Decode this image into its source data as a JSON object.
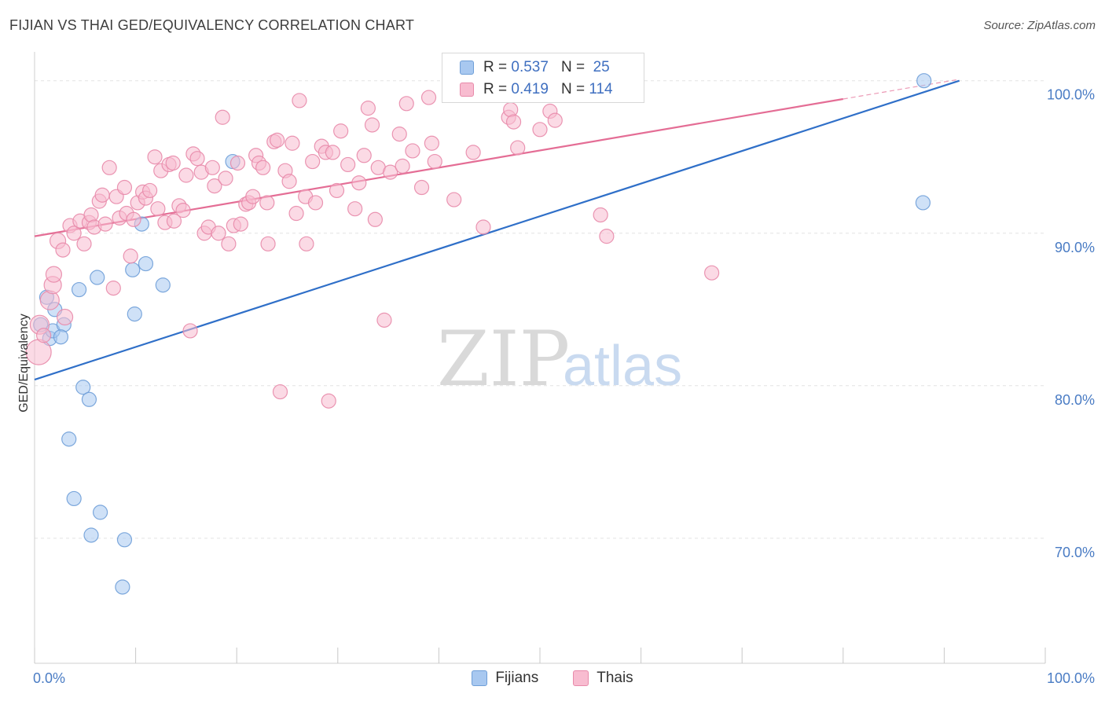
{
  "header": {
    "title": "FIJIAN VS THAI GED/EQUIVALENCY CORRELATION CHART",
    "source": "Source: ZipAtlas.com"
  },
  "watermark": {
    "zip": "ZIP",
    "atlas": "atlas"
  },
  "legend": {
    "series": [
      {
        "name": "Fijians",
        "r_label": "R =",
        "r": "0.537",
        "n_label": "N =",
        "n": "25",
        "color": "#a8c8f0",
        "edge": "#6f9fd8"
      },
      {
        "name": "Thais",
        "r_label": "R =",
        "r": "0.419",
        "n_label": "N =",
        "n": "114",
        "color": "#f8bcd0",
        "edge": "#e88aaa"
      }
    ]
  },
  "chart_data": {
    "type": "scatter",
    "title": "FIJIAN VS THAI GED/EQUIVALENCY CORRELATION CHART",
    "xlabel": "",
    "ylabel": "GED/Equivalency",
    "xlim": [
      0,
      100
    ],
    "ylim": [
      61.8,
      102.2
    ],
    "x_tick_labels": [
      {
        "value": 0,
        "label": "0.0%"
      },
      {
        "value": 100,
        "label": "100.0%"
      }
    ],
    "x_minor_ticks": [
      0,
      10,
      20,
      30,
      40,
      50,
      60,
      70,
      80,
      90,
      100
    ],
    "y_ticks": [
      {
        "value": 70,
        "label": "70.0%"
      },
      {
        "value": 80,
        "label": "80.0%"
      },
      {
        "value": 90,
        "label": "90.0%"
      },
      {
        "value": 100,
        "label": "100.0%"
      }
    ],
    "grid": true,
    "legend_position": "top-center",
    "series": [
      {
        "name": "Fijians",
        "color": "#a8c8f0",
        "edge": "#6f9fd8",
        "line_color": "#2f6fc8",
        "trend": {
          "x0": 0,
          "y0": 80.4,
          "x1": 91.5,
          "y1": 100.0,
          "dash_to": 91.5
        },
        "points": [
          [
            0.6,
            84.0,
            9
          ],
          [
            1.2,
            85.8,
            9
          ],
          [
            1.5,
            83.1,
            9
          ],
          [
            2.0,
            85.0,
            9
          ],
          [
            1.8,
            83.6,
            9
          ],
          [
            2.9,
            84.0,
            9
          ],
          [
            2.6,
            83.2,
            9
          ],
          [
            4.4,
            86.3,
            9
          ],
          [
            6.2,
            87.1,
            9
          ],
          [
            9.7,
            87.6,
            9
          ],
          [
            11.0,
            88.0,
            9
          ],
          [
            12.7,
            86.6,
            9
          ],
          [
            9.9,
            84.7,
            9
          ],
          [
            10.6,
            90.6,
            9
          ],
          [
            19.6,
            94.7,
            9
          ],
          [
            4.8,
            79.9,
            9
          ],
          [
            5.4,
            79.1,
            9
          ],
          [
            3.4,
            76.5,
            9
          ],
          [
            3.9,
            72.6,
            9
          ],
          [
            6.5,
            71.7,
            9
          ],
          [
            5.6,
            70.2,
            9
          ],
          [
            8.9,
            69.9,
            9
          ],
          [
            8.7,
            66.8,
            9
          ],
          [
            87.9,
            92.0,
            9
          ],
          [
            88.0,
            100.0,
            9
          ]
        ]
      },
      {
        "name": "Thais",
        "color": "#f8bcd0",
        "edge": "#e88aaa",
        "line_color": "#e46d95",
        "trend": {
          "x0": 0,
          "y0": 89.8,
          "x1": 80.0,
          "y1": 98.8,
          "dash_to": 91.5
        },
        "points": [
          [
            0.4,
            82.2,
            16
          ],
          [
            0.5,
            84.0,
            12
          ],
          [
            1.5,
            85.6,
            12
          ],
          [
            1.8,
            86.6,
            11
          ],
          [
            1.9,
            87.3,
            10
          ],
          [
            3.0,
            84.5,
            10
          ],
          [
            2.3,
            89.5,
            10
          ],
          [
            2.8,
            88.9,
            9
          ],
          [
            3.5,
            90.5,
            9
          ],
          [
            3.9,
            90.0,
            9
          ],
          [
            4.5,
            90.8,
            9
          ],
          [
            4.9,
            89.3,
            9
          ],
          [
            5.4,
            90.7,
            9
          ],
          [
            5.6,
            91.2,
            9
          ],
          [
            5.9,
            90.4,
            9
          ],
          [
            6.4,
            92.1,
            9
          ],
          [
            6.7,
            92.5,
            9
          ],
          [
            7.0,
            90.6,
            9
          ],
          [
            7.4,
            94.3,
            9
          ],
          [
            7.8,
            86.4,
            9
          ],
          [
            8.1,
            92.4,
            9
          ],
          [
            8.4,
            91.0,
            9
          ],
          [
            8.9,
            93.0,
            9
          ],
          [
            9.1,
            91.3,
            9
          ],
          [
            9.5,
            88.5,
            9
          ],
          [
            9.8,
            90.9,
            9
          ],
          [
            10.2,
            92.0,
            9
          ],
          [
            10.7,
            92.7,
            9
          ],
          [
            11.0,
            92.3,
            9
          ],
          [
            11.4,
            92.8,
            9
          ],
          [
            11.9,
            95.0,
            9
          ],
          [
            12.2,
            91.6,
            9
          ],
          [
            12.5,
            94.1,
            9
          ],
          [
            12.9,
            90.7,
            9
          ],
          [
            13.3,
            94.5,
            9
          ],
          [
            13.7,
            94.6,
            9
          ],
          [
            13.8,
            90.8,
            9
          ],
          [
            14.3,
            91.8,
            9
          ],
          [
            14.7,
            91.5,
            9
          ],
          [
            15.0,
            93.8,
            9
          ],
          [
            15.4,
            83.6,
            9
          ],
          [
            15.7,
            95.2,
            9
          ],
          [
            16.1,
            94.9,
            9
          ],
          [
            16.5,
            94.0,
            9
          ],
          [
            16.8,
            90.0,
            9
          ],
          [
            17.2,
            90.4,
            9
          ],
          [
            17.6,
            94.3,
            9
          ],
          [
            17.8,
            93.1,
            9
          ],
          [
            18.2,
            90.0,
            9
          ],
          [
            18.9,
            93.6,
            9
          ],
          [
            18.6,
            97.6,
            9
          ],
          [
            19.2,
            89.3,
            9
          ],
          [
            19.7,
            90.5,
            9
          ],
          [
            20.1,
            94.6,
            9
          ],
          [
            20.4,
            90.6,
            9
          ],
          [
            20.9,
            91.9,
            9
          ],
          [
            21.2,
            92.0,
            9
          ],
          [
            21.6,
            92.4,
            9
          ],
          [
            21.9,
            95.1,
            9
          ],
          [
            22.2,
            94.6,
            9
          ],
          [
            22.6,
            94.3,
            9
          ],
          [
            23.1,
            89.3,
            9
          ],
          [
            23.0,
            92.0,
            9
          ],
          [
            23.7,
            96.0,
            9
          ],
          [
            24.0,
            96.1,
            9
          ],
          [
            24.3,
            79.6,
            9
          ],
          [
            24.8,
            94.1,
            9
          ],
          [
            25.2,
            93.4,
            9
          ],
          [
            25.5,
            95.9,
            9
          ],
          [
            25.9,
            91.3,
            9
          ],
          [
            26.2,
            98.7,
            9
          ],
          [
            26.8,
            92.4,
            9
          ],
          [
            26.9,
            89.3,
            9
          ],
          [
            27.5,
            94.7,
            9
          ],
          [
            27.8,
            92.0,
            9
          ],
          [
            28.4,
            95.7,
            9
          ],
          [
            28.8,
            95.3,
            9
          ],
          [
            29.1,
            79.0,
            9
          ],
          [
            29.5,
            95.3,
            9
          ],
          [
            29.9,
            92.8,
            9
          ],
          [
            30.3,
            96.7,
            9
          ],
          [
            31.0,
            94.5,
            9
          ],
          [
            31.7,
            91.6,
            9
          ],
          [
            32.1,
            93.3,
            9
          ],
          [
            32.6,
            95.1,
            9
          ],
          [
            33.0,
            98.2,
            9
          ],
          [
            33.4,
            97.1,
            9
          ],
          [
            33.7,
            90.9,
            9
          ],
          [
            34.0,
            94.3,
            9
          ],
          [
            34.6,
            84.3,
            9
          ],
          [
            35.2,
            94.0,
            9
          ],
          [
            36.1,
            96.5,
            9
          ],
          [
            36.4,
            94.4,
            9
          ],
          [
            36.8,
            98.5,
            9
          ],
          [
            37.4,
            95.4,
            9
          ],
          [
            38.3,
            93.0,
            9
          ],
          [
            39.0,
            98.9,
            9
          ],
          [
            39.3,
            95.9,
            9
          ],
          [
            39.6,
            94.7,
            9
          ],
          [
            41.5,
            92.2,
            9
          ],
          [
            43.4,
            95.3,
            9
          ],
          [
            44.4,
            90.4,
            9
          ],
          [
            46.9,
            97.6,
            9
          ],
          [
            47.1,
            98.1,
            9
          ],
          [
            47.4,
            97.3,
            9
          ],
          [
            47.8,
            95.6,
            9
          ],
          [
            50.0,
            96.8,
            9
          ],
          [
            51.0,
            98.0,
            9
          ],
          [
            51.5,
            97.4,
            9
          ],
          [
            54.7,
            100.1,
            9
          ],
          [
            56.0,
            91.2,
            9
          ],
          [
            56.6,
            89.8,
            9
          ],
          [
            67.0,
            87.4,
            9
          ],
          [
            0.9,
            83.3,
            9
          ]
        ]
      }
    ]
  }
}
